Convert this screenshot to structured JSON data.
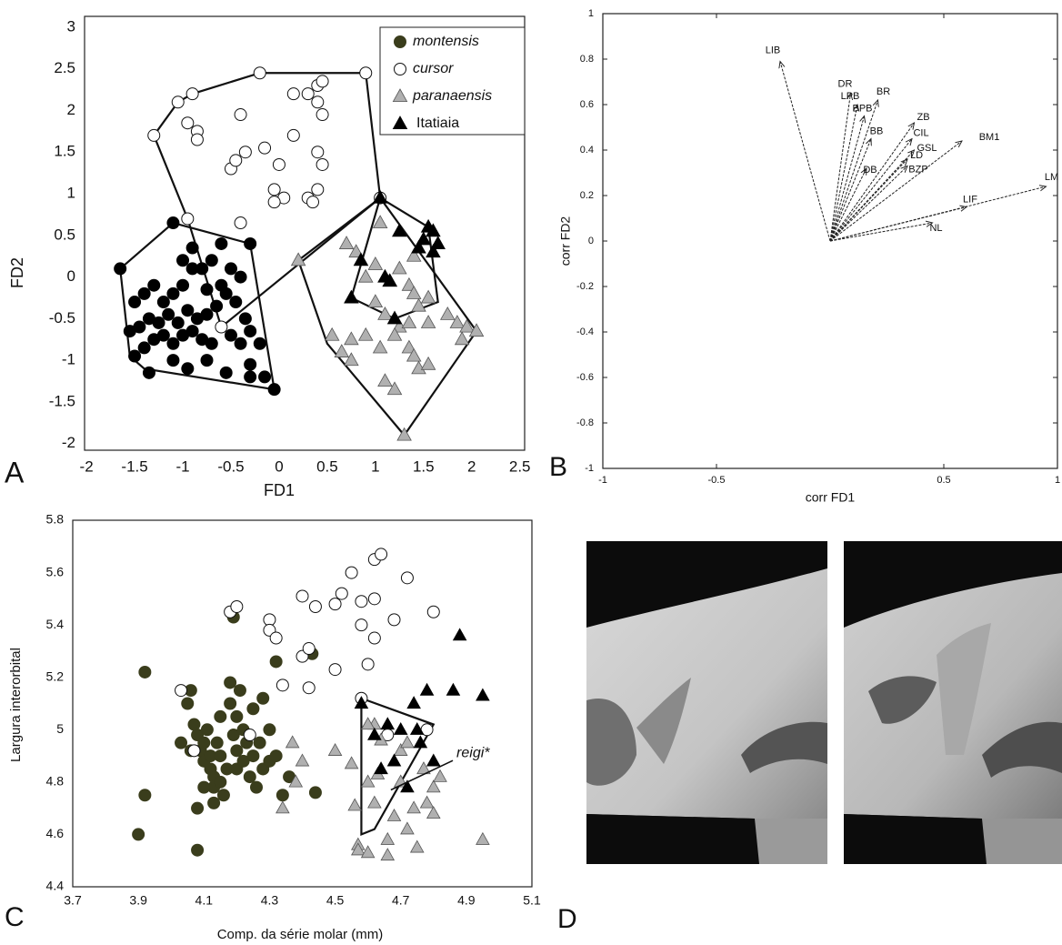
{
  "chart_data": [
    {
      "type": "scatter",
      "panel_label": "A",
      "x_label": "FD1",
      "y_label": "FD2",
      "xlim": [
        -2.02,
        2.55
      ],
      "ylim": [
        -2.08,
        3.13
      ],
      "xticks": [
        -2,
        -1.5,
        -1,
        -0.5,
        0,
        0.5,
        1,
        1.5,
        2,
        2.5
      ],
      "yticks": [
        3,
        2.5,
        2,
        1.5,
        1,
        0.5,
        0,
        -0.5,
        -1,
        -1.5,
        -2
      ],
      "legend": "upper right",
      "series": [
        {
          "name": "montensis",
          "color": "#000000",
          "legend_color": "#3a3d1c",
          "marker": "circle",
          "x": [
            -1.65,
            -1.1,
            -0.9,
            -0.6,
            -0.3,
            -1.5,
            -1.4,
            -1.3,
            -1.2,
            -1.1,
            -1.0,
            -0.9,
            -0.8,
            -0.7,
            -0.5,
            -0.4,
            -1.45,
            -1.35,
            -1.25,
            -1.15,
            -1.05,
            -0.95,
            -0.85,
            -0.75,
            -0.65,
            -0.55,
            -0.45,
            -0.35,
            -1.55,
            -1.4,
            -1.3,
            -1.2,
            -1.1,
            -1.0,
            -0.9,
            -0.8,
            -0.7,
            -0.5,
            -0.4,
            -0.3,
            -0.2,
            -1.5,
            -1.35,
            -1.1,
            -0.95,
            -0.75,
            -0.55,
            -0.3,
            -0.15,
            -0.05,
            -0.3,
            -0.6,
            -1.0,
            -0.75
          ],
          "values": [
            0.1,
            0.65,
            0.35,
            0.4,
            0.4,
            -0.3,
            -0.2,
            -0.1,
            -0.3,
            -0.2,
            -0.1,
            0.1,
            0.1,
            0.2,
            0.1,
            0.0,
            -0.6,
            -0.5,
            -0.55,
            -0.45,
            -0.55,
            -0.4,
            -0.5,
            -0.45,
            -0.35,
            -0.2,
            -0.3,
            -0.5,
            -0.65,
            -0.85,
            -0.75,
            -0.7,
            -0.8,
            -0.7,
            -0.65,
            -0.75,
            -0.8,
            -0.7,
            -0.8,
            -0.65,
            -0.8,
            -0.95,
            -1.15,
            -1.0,
            -1.1,
            -1.0,
            -1.15,
            -1.05,
            -1.2,
            -1.35,
            -1.2,
            -0.1,
            0.2,
            -0.15
          ]
        },
        {
          "name": "cursor",
          "color": "#ffffff",
          "marker": "circle-open",
          "x": [
            -1.3,
            -1.05,
            -0.9,
            -0.2,
            0.9,
            0.15,
            0.3,
            0.4,
            0.45,
            0.4,
            0.45,
            -0.95,
            -0.85,
            -0.85,
            -0.4,
            -0.5,
            -0.45,
            -0.35,
            -0.15,
            0.15,
            0.0,
            0.4,
            0.45,
            -0.05,
            0.05,
            -0.05,
            0.3,
            0.4,
            0.35,
            -0.4,
            -0.95,
            1.05,
            -0.6
          ],
          "values": [
            1.7,
            2.1,
            2.2,
            2.45,
            2.45,
            2.2,
            2.2,
            2.3,
            2.35,
            2.1,
            1.95,
            1.85,
            1.75,
            1.65,
            1.95,
            1.3,
            1.4,
            1.5,
            1.55,
            1.7,
            1.35,
            1.5,
            1.35,
            1.05,
            0.95,
            0.9,
            0.95,
            1.05,
            0.9,
            0.65,
            0.7,
            0.95,
            -0.6
          ]
        },
        {
          "name": "paranaensis",
          "color": "#b0b0b0",
          "marker": "triangle",
          "x": [
            0.2,
            0.7,
            1.05,
            0.8,
            1.0,
            0.9,
            1.15,
            1.25,
            1.4,
            1.35,
            1.4,
            1.45,
            1.55,
            1.0,
            1.1,
            1.25,
            1.35,
            1.55,
            1.75,
            1.85,
            1.95,
            2.05,
            1.9,
            0.55,
            0.75,
            0.9,
            1.05,
            1.2,
            1.35,
            0.65,
            0.75,
            1.4,
            1.45,
            1.55,
            1.1,
            1.2,
            1.3
          ],
          "values": [
            0.2,
            0.4,
            0.65,
            0.3,
            0.15,
            0.0,
            -0.05,
            0.1,
            0.25,
            -0.1,
            -0.2,
            -0.35,
            -0.25,
            -0.3,
            -0.45,
            -0.6,
            -0.55,
            -0.55,
            -0.45,
            -0.55,
            -0.6,
            -0.65,
            -0.75,
            -0.7,
            -0.75,
            -0.7,
            -0.85,
            -0.7,
            -0.85,
            -0.9,
            -1.0,
            -0.95,
            -1.1,
            -1.05,
            -1.25,
            -1.35,
            -1.9
          ]
        },
        {
          "name": "Itatiaia",
          "color": "#000000",
          "marker": "triangle",
          "x": [
            1.05,
            1.25,
            1.55,
            1.6,
            1.5,
            1.45,
            1.65,
            1.6,
            0.85,
            1.1,
            1.15,
            0.75,
            1.2
          ],
          "values": [
            0.95,
            0.55,
            0.6,
            0.55,
            0.45,
            0.35,
            0.4,
            0.3,
            0.2,
            0.0,
            -0.05,
            -0.25,
            -0.5
          ]
        }
      ],
      "hulls": [
        {
          "x": [
            -1.65,
            -1.1,
            -0.3,
            -0.05,
            -1.4,
            -1.55,
            -1.65
          ],
          "values": [
            0.1,
            0.65,
            0.4,
            -1.35,
            -1.1,
            -0.95,
            0.1
          ]
        },
        {
          "x": [
            -1.3,
            -1.05,
            -0.9,
            -0.2,
            0.9,
            1.05,
            -0.6,
            -0.95,
            -1.3
          ],
          "values": [
            1.7,
            2.1,
            2.2,
            2.45,
            2.45,
            0.95,
            -0.6,
            0.7,
            1.7
          ]
        },
        {
          "x": [
            0.2,
            1.05,
            2.05,
            1.3,
            0.5,
            0.2
          ],
          "values": [
            0.2,
            0.95,
            -0.65,
            -1.9,
            -0.8,
            0.2
          ]
        },
        {
          "x": [
            1.05,
            1.55,
            1.65,
            1.2,
            0.75,
            1.05
          ],
          "values": [
            0.95,
            0.6,
            -0.3,
            -0.5,
            -0.25,
            0.95
          ]
        }
      ]
    },
    {
      "type": "vectors",
      "panel_label": "B",
      "x_label": "corr FD1",
      "y_label": "corr FD2",
      "xlim": [
        -1,
        1
      ],
      "ylim": [
        -1,
        1
      ],
      "xticks": [
        -1,
        -0.5,
        0.5,
        1
      ],
      "yticks": [
        1,
        0.8,
        0.6,
        0.4,
        0.2,
        0,
        -0.2,
        -0.4,
        -0.6,
        -0.8,
        -1
      ],
      "labels": [
        "LIB",
        "DR",
        "LPB",
        "BR",
        "BPB",
        "ZB",
        "CIL",
        "GSL",
        "BB",
        "LD",
        "BZP",
        "DB",
        "BM1",
        "LM",
        "LIF",
        "NL"
      ],
      "x": [
        -0.22,
        0.09,
        0.12,
        0.21,
        0.15,
        0.37,
        0.36,
        0.37,
        0.18,
        0.34,
        0.34,
        0.16,
        0.58,
        0.95,
        0.6,
        0.45
      ],
      "values": [
        0.79,
        0.65,
        0.6,
        0.62,
        0.55,
        0.52,
        0.45,
        0.4,
        0.45,
        0.36,
        0.33,
        0.32,
        0.44,
        0.24,
        0.15,
        0.08
      ]
    },
    {
      "type": "scatter",
      "panel_label": "C",
      "x_label": "Comp. da série molar (mm)",
      "y_label": "Largura interorbital",
      "xlim": [
        3.7,
        5.1
      ],
      "ylim": [
        4.4,
        5.8
      ],
      "xticks": [
        3.7,
        3.9,
        4.1,
        4.3,
        4.5,
        4.7,
        4.9,
        5.1
      ],
      "yticks": [
        5.8,
        5.6,
        5.4,
        5.2,
        5,
        4.8,
        4.6,
        4.4
      ],
      "series": [
        {
          "name": "montensis",
          "color": "#3a3d1c",
          "marker": "circle",
          "x": [
            3.9,
            3.92,
            3.92,
            4.05,
            4.06,
            4.07,
            4.08,
            4.09,
            4.1,
            4.1,
            4.11,
            4.12,
            4.12,
            4.13,
            4.13,
            4.14,
            4.15,
            4.15,
            4.15,
            4.16,
            4.17,
            4.18,
            4.18,
            4.19,
            4.2,
            4.2,
            4.2,
            4.21,
            4.22,
            4.22,
            4.23,
            4.24,
            4.25,
            4.25,
            4.26,
            4.27,
            4.28,
            4.28,
            4.3,
            4.3,
            4.32,
            4.32,
            4.34,
            4.36,
            4.43,
            4.44,
            4.19,
            4.08,
            4.1,
            4.08,
            4.13,
            4.06,
            4.03
          ],
          "values": [
            4.6,
            4.75,
            5.22,
            5.1,
            5.15,
            5.02,
            4.98,
            4.92,
            4.88,
            4.95,
            5.0,
            4.9,
            4.85,
            4.82,
            4.78,
            4.95,
            5.05,
            4.9,
            4.8,
            4.75,
            4.85,
            5.18,
            5.1,
            4.98,
            5.05,
            4.92,
            4.85,
            5.15,
            4.88,
            5.0,
            4.95,
            4.82,
            5.08,
            4.9,
            4.78,
            4.95,
            5.12,
            4.85,
            4.88,
            5.0,
            4.9,
            5.26,
            4.75,
            4.82,
            5.29,
            4.76,
            5.43,
            4.7,
            4.78,
            4.54,
            4.72,
            4.92,
            4.95
          ]
        },
        {
          "name": "cursor",
          "color": "#ffffff",
          "marker": "circle-open",
          "x": [
            4.18,
            4.2,
            4.03,
            4.07,
            4.24,
            4.3,
            4.3,
            4.32,
            4.34,
            4.4,
            4.4,
            4.42,
            4.42,
            4.44,
            4.5,
            4.5,
            4.52,
            4.55,
            4.58,
            4.58,
            4.6,
            4.62,
            4.62,
            4.64,
            4.62,
            4.68,
            4.72,
            4.8,
            4.58,
            4.66,
            4.78
          ],
          "values": [
            5.45,
            5.47,
            5.15,
            4.92,
            4.98,
            5.42,
            5.38,
            5.35,
            5.17,
            5.51,
            5.28,
            5.31,
            5.16,
            5.47,
            5.48,
            5.23,
            5.52,
            5.6,
            5.4,
            5.49,
            5.25,
            5.65,
            5.5,
            5.67,
            5.35,
            5.42,
            5.58,
            5.45,
            5.12,
            4.98,
            5.0
          ]
        },
        {
          "name": "paranaensis",
          "color": "#b0b0b0",
          "marker": "triangle",
          "x": [
            4.37,
            4.4,
            4.38,
            4.34,
            4.5,
            4.55,
            4.56,
            4.57,
            4.57,
            4.6,
            4.6,
            4.62,
            4.63,
            4.64,
            4.66,
            4.66,
            4.68,
            4.7,
            4.7,
            4.72,
            4.72,
            4.74,
            4.75,
            4.77,
            4.78,
            4.8,
            4.8,
            4.82,
            4.95,
            4.62,
            4.6
          ],
          "values": [
            4.95,
            4.88,
            4.8,
            4.7,
            4.92,
            4.87,
            4.71,
            4.56,
            4.54,
            4.53,
            4.8,
            4.72,
            4.83,
            4.96,
            4.58,
            4.52,
            4.67,
            4.8,
            4.92,
            4.95,
            4.62,
            4.7,
            4.55,
            4.85,
            4.72,
            4.78,
            4.68,
            4.82,
            4.58,
            5.02,
            5.02
          ]
        },
        {
          "name": "Itatiaia",
          "color": "#000000",
          "marker": "triangle",
          "x": [
            4.58,
            4.62,
            4.64,
            4.66,
            4.68,
            4.7,
            4.72,
            4.74,
            4.75,
            4.76,
            4.78,
            4.8,
            4.86,
            4.88,
            4.95
          ],
          "values": [
            5.1,
            4.98,
            4.85,
            5.02,
            4.88,
            5.0,
            4.78,
            5.1,
            5.0,
            4.95,
            5.15,
            4.88,
            5.15,
            5.36,
            5.13
          ]
        }
      ],
      "hulls": [
        {
          "x": [
            4.58,
            4.8,
            4.62,
            4.58,
            4.58
          ],
          "values": [
            5.12,
            5.02,
            4.62,
            4.6,
            5.12
          ]
        }
      ],
      "annotations": [
        {
          "text": "reigi*",
          "x": 4.87,
          "y": 4.91,
          "target_x": 4.67,
          "target_y": 4.77
        }
      ]
    }
  ],
  "figure_d": {
    "panel_label": "D"
  }
}
